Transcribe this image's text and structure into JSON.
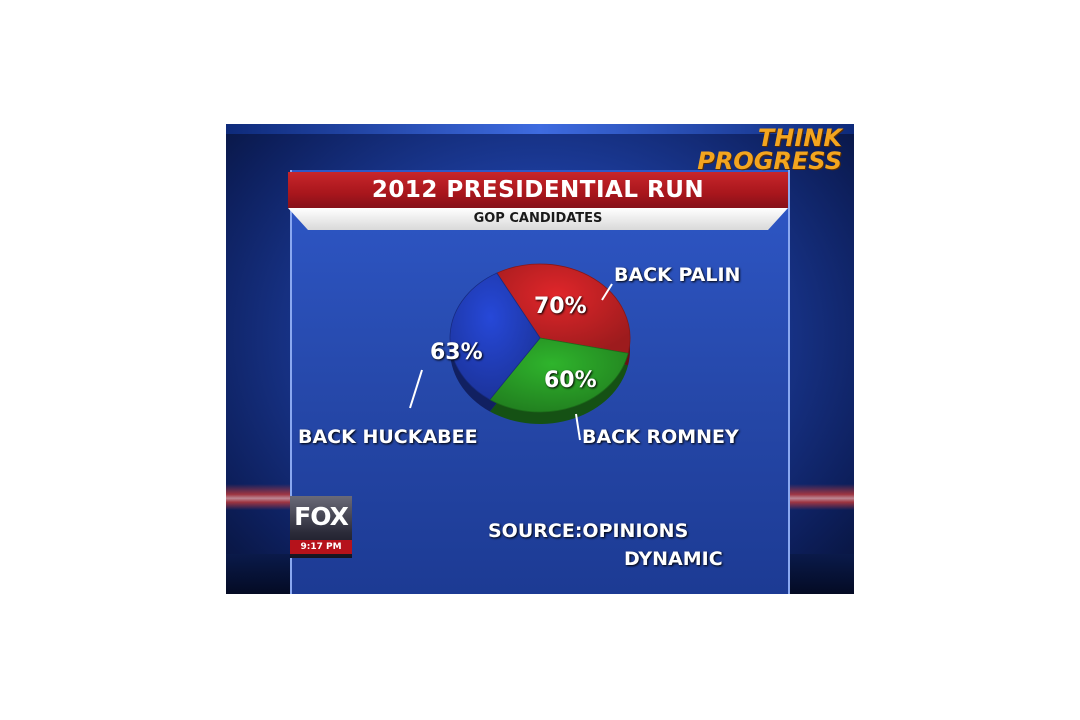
{
  "watermark": {
    "line1": "THINK",
    "line2": "PROGRESS"
  },
  "chart_data": {
    "type": "pie",
    "title": "2012 PRESIDENTIAL RUN",
    "subtitle": "GOP CANDIDATES",
    "slices": [
      {
        "label": "BACK PALIN",
        "value": 70,
        "display": "70%",
        "color": "#e0262a"
      },
      {
        "label": "BACK ROMNEY",
        "value": 60,
        "display": "60%",
        "color": "#2fb42c"
      },
      {
        "label": "BACK HUCKABEE",
        "value": 63,
        "display": "63%",
        "color": "#2648d8"
      }
    ],
    "source_line1": "SOURCE:OPINIONS",
    "source_line2": "DYNAMIC"
  },
  "network": {
    "logo": "FOX",
    "time": "9:17 PM"
  }
}
